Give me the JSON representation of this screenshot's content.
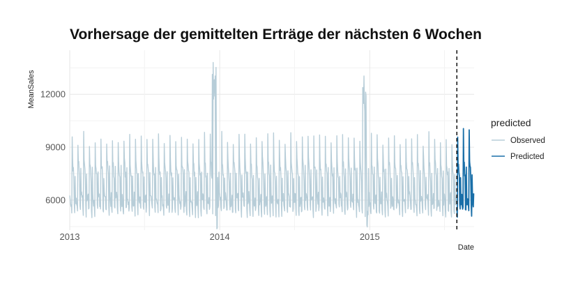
{
  "chart_data": {
    "type": "line",
    "title": "Vorhersage der gemittelten Erträge der nächsten 6 Wochen",
    "xlabel": "Date",
    "ylabel": "MeanSales",
    "x_ticks": [
      "2013",
      "2014",
      "2015"
    ],
    "y_ticks": [
      6000,
      9000,
      12000
    ],
    "xlim": [
      "2013-01-01",
      "2015-09-12"
    ],
    "ylim": [
      4300,
      14500
    ],
    "grid": true,
    "legend": {
      "title": "predicted",
      "position": "right"
    },
    "forecast_start": "2015-08-01",
    "series": [
      {
        "name": "Observed",
        "color": "#b7cdd8",
        "start": "2013-01-01",
        "end": "2015-07-31",
        "baseline": 5600,
        "weekly_peak": 9000,
        "note_range": [
          4300,
          14000
        ]
      },
      {
        "name": "Predicted",
        "color": "#1a6fa8",
        "start": "2015-08-01",
        "end": "2015-09-11",
        "baseline": 5600,
        "weekly_peak": 9300
      }
    ]
  }
}
